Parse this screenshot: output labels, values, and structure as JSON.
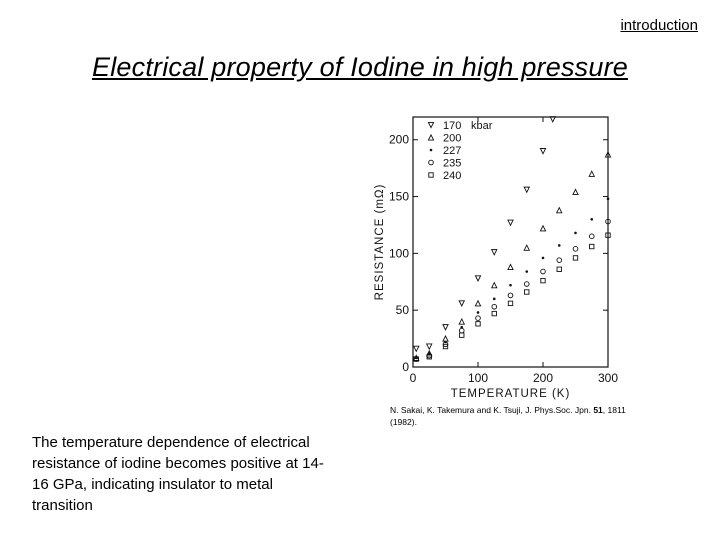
{
  "header": {
    "corner_label": "introduction"
  },
  "slide": {
    "title": "Electrical property of Iodine in high pressure",
    "citation": {
      "authors": "N. Sakai, K. Takemura and K. Tsuji, J. Phys.Soc. Jpn.",
      "volume": "51",
      "pages": ", 1811 (1982)."
    },
    "description": "The temperature dependence of electrical resistance of iodine becomes positive at 14-16 GPa, indicating insulator to metal transition"
  },
  "chart_data": {
    "type": "scatter",
    "title": "",
    "xlabel": "TEMPERATURE (K)",
    "ylabel": "RESISTANCE (mΩ)",
    "xlim": [
      0,
      300
    ],
    "ylim": [
      0,
      220
    ],
    "x_ticks": [
      0,
      100,
      200,
      300
    ],
    "y_ticks": [
      0,
      50,
      100,
      150,
      200
    ],
    "grid": false,
    "legend_position": "top-left",
    "legend_unit": "kbar",
    "series": [
      {
        "name": "170",
        "marker": "triangle-down",
        "x": [
          5,
          25,
          50,
          75,
          100,
          125,
          150,
          175,
          200,
          215
        ],
        "y": [
          16,
          18,
          35,
          56,
          78,
          101,
          127,
          156,
          190,
          218
        ]
      },
      {
        "name": "200",
        "marker": "triangle-up",
        "x": [
          5,
          25,
          50,
          75,
          100,
          125,
          150,
          175,
          200,
          225,
          250,
          275,
          300
        ],
        "y": [
          8,
          12,
          25,
          40,
          56,
          72,
          88,
          105,
          122,
          138,
          154,
          170,
          187
        ]
      },
      {
        "name": "227",
        "marker": "dot",
        "x": [
          5,
          25,
          50,
          75,
          100,
          125,
          150,
          175,
          200,
          225,
          250,
          275,
          300
        ],
        "y": [
          8,
          12,
          22,
          35,
          48,
          60,
          72,
          84,
          96,
          107,
          118,
          130,
          148
        ]
      },
      {
        "name": "235",
        "marker": "circle",
        "x": [
          5,
          25,
          50,
          75,
          100,
          125,
          150,
          175,
          200,
          225,
          250,
          275,
          300
        ],
        "y": [
          7,
          10,
          20,
          32,
          43,
          53,
          63,
          73,
          84,
          94,
          104,
          115,
          128
        ]
      },
      {
        "name": "240",
        "marker": "square",
        "x": [
          5,
          25,
          50,
          75,
          100,
          125,
          150,
          175,
          200,
          225,
          250,
          275,
          300
        ],
        "y": [
          7,
          9,
          18,
          28,
          38,
          47,
          56,
          66,
          76,
          86,
          96,
          106,
          116
        ]
      }
    ]
  }
}
